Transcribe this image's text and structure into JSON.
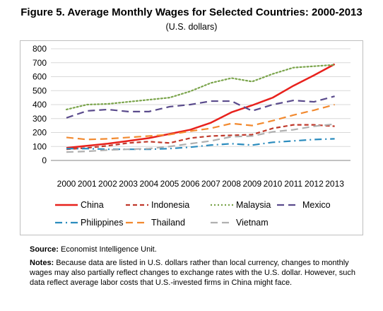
{
  "figure_title": "Figure 5. Average Monthly Wages for Selected Countries: 2000-2013",
  "figure_subtitle": "(U.S. dollars)",
  "source_label": "Source:",
  "source_text": "Economist Intelligence Unit.",
  "notes_label": "Notes:",
  "notes_text": "Because data are listed in U.S. dollars rather than local currency, changes to monthly wages may also partially reflect changes to exchange rates with the U.S. dollar. However, such data reflect average labor costs that U.S.-invested firms in China might face.",
  "chart_data": {
    "type": "line",
    "title": "Figure 5. Average Monthly Wages for Selected Countries: 2000-2013",
    "subtitle": "(U.S. dollars)",
    "x": [
      "2000",
      "2001",
      "2002",
      "2003",
      "2004",
      "2005",
      "2006",
      "2007",
      "2008",
      "2009",
      "2010",
      "2011",
      "2012",
      "2013"
    ],
    "ylim": [
      0,
      800
    ],
    "yticks": [
      "0",
      "100",
      "200",
      "300",
      "400",
      "500",
      "600",
      "700",
      "800"
    ],
    "grid": "horizontal",
    "legend_position": "bottom",
    "series": [
      {
        "name": "China",
        "color": "#e8211c",
        "dash": "solid",
        "values": [
          90,
          105,
          120,
          140,
          160,
          190,
          220,
          270,
          345,
          395,
          450,
          535,
          610,
          690
        ]
      },
      {
        "name": "Indonesia",
        "color": "#c0392b",
        "dash": "dash",
        "values": [
          80,
          90,
          105,
          125,
          135,
          125,
          160,
          175,
          180,
          185,
          230,
          255,
          255,
          245
        ]
      },
      {
        "name": "Malaysia",
        "color": "#7aa44b",
        "dash": "dot",
        "values": [
          365,
          400,
          405,
          420,
          435,
          450,
          495,
          555,
          590,
          565,
          620,
          665,
          675,
          685
        ]
      },
      {
        "name": "Mexico",
        "color": "#5a4b8c",
        "dash": "longdash",
        "values": [
          305,
          355,
          365,
          350,
          350,
          385,
          400,
          425,
          425,
          355,
          400,
          430,
          420,
          460
        ]
      },
      {
        "name": "Philippines",
        "color": "#2b8cbe",
        "dash": "dashdot",
        "values": [
          85,
          85,
          80,
          80,
          80,
          85,
          95,
          110,
          120,
          110,
          130,
          140,
          150,
          155
        ]
      },
      {
        "name": "Thailand",
        "color": "#f28a30",
        "dash": "longdash",
        "values": [
          165,
          150,
          155,
          165,
          175,
          185,
          210,
          230,
          265,
          250,
          285,
          325,
          360,
          400
        ]
      },
      {
        "name": "Vietnam",
        "color": "#b0b0b0",
        "dash": "longdash",
        "values": [
          60,
          65,
          75,
          80,
          85,
          100,
          120,
          140,
          170,
          175,
          205,
          220,
          245,
          260
        ]
      }
    ]
  }
}
